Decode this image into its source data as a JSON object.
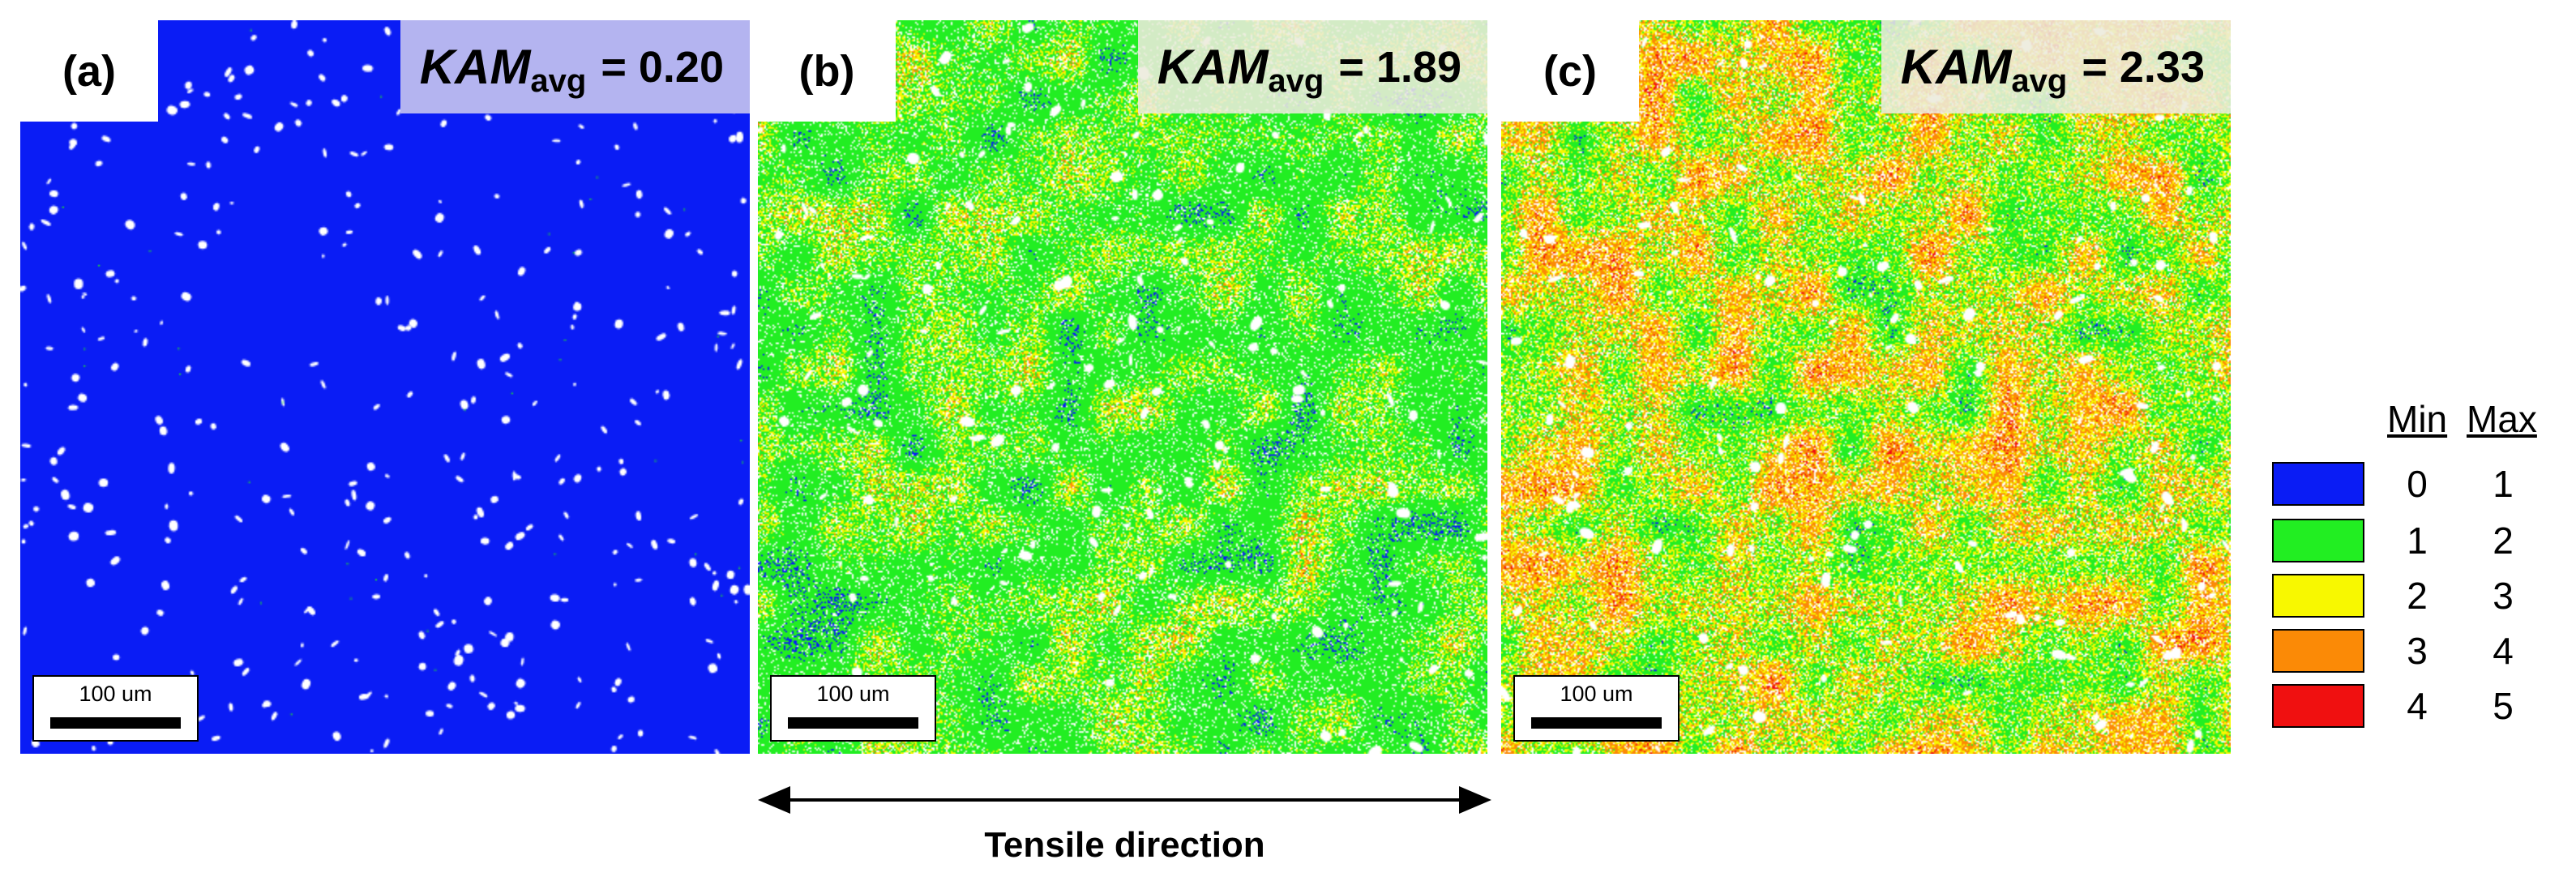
{
  "panels": [
    {
      "label": "(a)",
      "kam_symbol": "KAM",
      "kam_subscript": "avg",
      "kam_value": "= 0.20",
      "scale_text": "100 um",
      "mix": {
        "blue": 0.94,
        "white": 0.06,
        "green": 0.0,
        "yellow": 0.0,
        "orange": 0.0,
        "red": 0.0
      }
    },
    {
      "label": "(b)",
      "kam_symbol": "KAM",
      "kam_subscript": "avg",
      "kam_value": "= 1.89",
      "scale_text": "100 um",
      "mix": {
        "blue": 0.13,
        "green": 0.48,
        "yellow": 0.16,
        "orange": 0.09,
        "red": 0.02,
        "white": 0.12
      }
    },
    {
      "label": "(c)",
      "kam_symbol": "KAM",
      "kam_subscript": "avg",
      "kam_value": "= 2.33",
      "scale_text": "100 um",
      "mix": {
        "blue": 0.05,
        "green": 0.32,
        "yellow": 0.17,
        "orange": 0.23,
        "red": 0.1,
        "white": 0.13
      }
    }
  ],
  "tensile_label": "Tensile direction",
  "legend": {
    "min_header": "Min",
    "max_header": "Max",
    "rows": [
      {
        "color": "#0a1cf5",
        "min": "0",
        "max": "1"
      },
      {
        "color": "#22ee22",
        "min": "1",
        "max": "2"
      },
      {
        "color": "#f8f800",
        "min": "2",
        "max": "3"
      },
      {
        "color": "#fb8a06",
        "min": "3",
        "max": "4"
      },
      {
        "color": "#f01010",
        "min": "4",
        "max": "5"
      }
    ]
  }
}
